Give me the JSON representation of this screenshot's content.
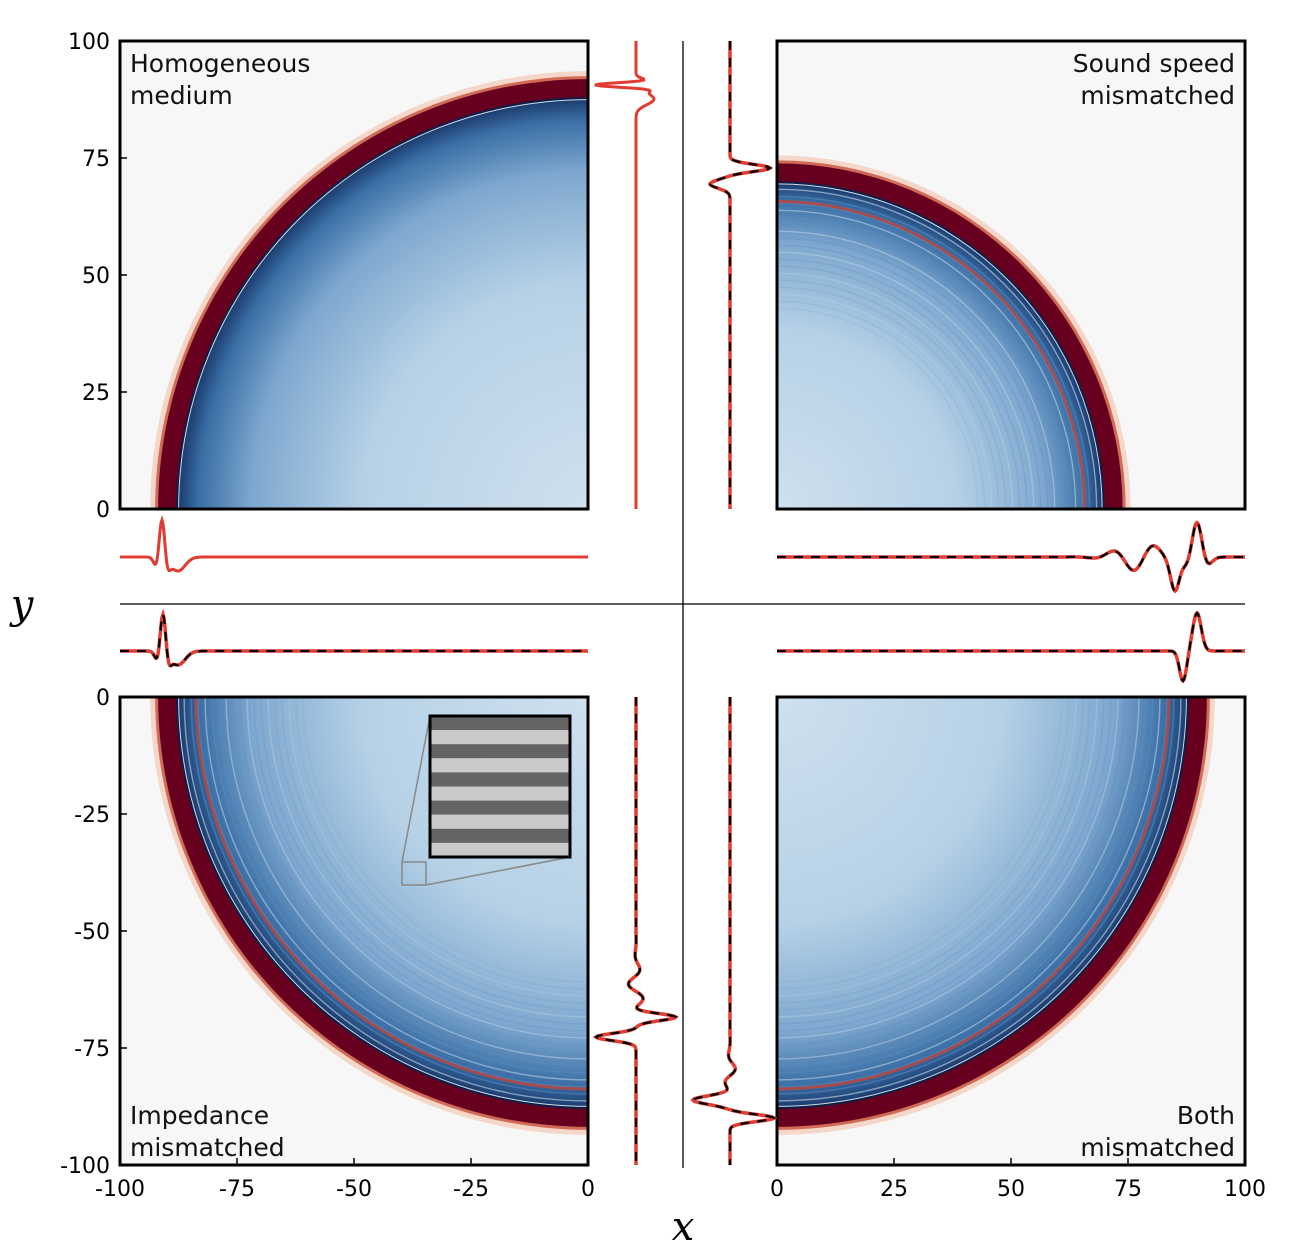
{
  "chart_data": {
    "type": "heatmap",
    "xlabel": "x",
    "ylabel": "y",
    "colors": {
      "wave_front": "#67001f",
      "interior": "#2166ac",
      "interior_light": "#cfe0ee",
      "background": "#f7f7f7",
      "profile_reference": "#e03c31",
      "profile_overlay": "#000000"
    },
    "panels": [
      {
        "id": "top-left",
        "label": [
          "Homogeneous",
          "medium"
        ],
        "xlim": [
          -100,
          0
        ],
        "ylim": [
          0,
          100
        ],
        "yticks": [
          100,
          75,
          50,
          25,
          0
        ],
        "front_radius": 91,
        "fringes": false,
        "profiles": [
          "solid"
        ]
      },
      {
        "id": "top-right",
        "label": [
          "Sound speed",
          "mismatched"
        ],
        "xlim": [
          0,
          100
        ],
        "ylim": [
          0,
          100
        ],
        "front_radius": 73,
        "fringes": true,
        "profiles": [
          "dashed"
        ]
      },
      {
        "id": "bottom-left",
        "label": [
          "Impedance",
          "mismatched"
        ],
        "xlim": [
          -100,
          0
        ],
        "ylim": [
          -100,
          0
        ],
        "xticks": [
          -100,
          -75,
          -50,
          -25,
          0
        ],
        "yticks": [
          0,
          -25,
          -50,
          -75,
          -100
        ],
        "front_radius": 91,
        "fringes": true,
        "inset": "layered medium zoom",
        "profiles": [
          "dashed"
        ]
      },
      {
        "id": "bottom-right",
        "label": [
          "Both",
          "mismatched"
        ],
        "xlim": [
          0,
          100
        ],
        "ylim": [
          -100,
          0
        ],
        "xticks": [
          0,
          25,
          50,
          75,
          100
        ],
        "front_radius": 91,
        "fringes": true,
        "profiles": [
          "dashed"
        ]
      }
    ]
  }
}
